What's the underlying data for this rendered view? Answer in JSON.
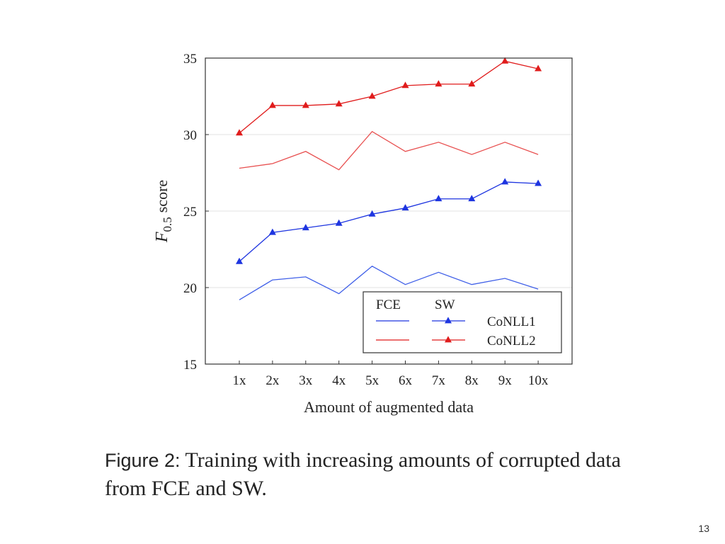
{
  "caption": {
    "label": "Figure 2:",
    "text": "Training with increasing amounts of corrupted data from FCE and SW."
  },
  "page_number": "13",
  "chart_data": {
    "type": "line",
    "title": "",
    "xlabel": "Amount of augmented data",
    "ylabel_main": "F",
    "ylabel_sub": "0.5",
    "ylabel_rest": "score",
    "categories": [
      "1x",
      "2x",
      "3x",
      "4x",
      "5x",
      "6x",
      "7x",
      "8x",
      "9x",
      "10x"
    ],
    "ylim": [
      15,
      35
    ],
    "yticks": [
      15,
      20,
      25,
      30,
      35
    ],
    "grid": true,
    "legend_position": "bottom-right",
    "legend_headers": [
      "FCE",
      "SW"
    ],
    "legend_rows": [
      {
        "label": "CoNLL1",
        "color": "#1e35e0"
      },
      {
        "label": "CoNLL2",
        "color": "#e01c1c"
      }
    ],
    "series": [
      {
        "source": "SW",
        "row": "CoNLL1",
        "color": "#1e35e0",
        "marker": "triangle",
        "values": [
          21.7,
          23.6,
          23.9,
          24.2,
          24.8,
          25.2,
          25.8,
          25.8,
          26.9,
          26.8
        ]
      },
      {
        "source": "SW",
        "row": "CoNLL2",
        "color": "#e01c1c",
        "marker": "triangle",
        "values": [
          30.1,
          31.9,
          31.9,
          32.0,
          32.5,
          33.2,
          33.3,
          33.3,
          34.8,
          34.3
        ]
      },
      {
        "source": "FCE",
        "row": "CoNLL1",
        "color": "#4060e8",
        "marker": "none",
        "values": [
          19.2,
          20.5,
          20.7,
          19.6,
          21.4,
          20.2,
          21.0,
          20.2,
          20.6,
          19.9
        ]
      },
      {
        "source": "FCE",
        "row": "CoNLL2",
        "color": "#e85050",
        "marker": "none",
        "values": [
          27.8,
          28.1,
          28.9,
          27.7,
          30.2,
          28.9,
          29.5,
          28.7,
          29.5,
          28.7
        ]
      }
    ]
  }
}
